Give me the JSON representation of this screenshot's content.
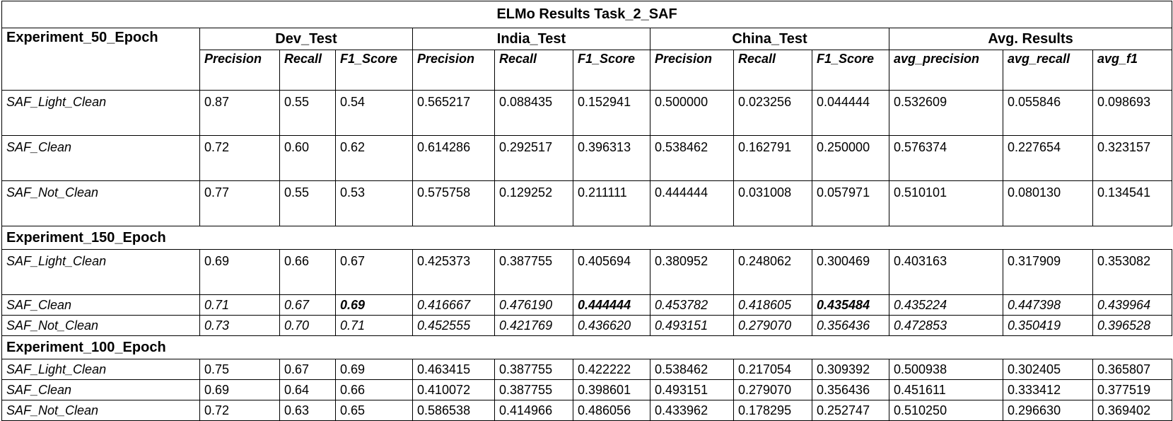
{
  "table": {
    "title": "ELMo Results Task_2_SAF",
    "groups": [
      "Dev_Test",
      "India_Test",
      "China_Test",
      "Avg. Results"
    ],
    "columns": [
      "Precision",
      "Recall",
      "F1_Score",
      "Precision",
      "Recall",
      "F1_Score",
      "Precision",
      "Recall",
      "F1_Score",
      "avg_precision",
      "avg_recall",
      "avg_f1"
    ],
    "sections": [
      {
        "title": "Experiment_50_Epoch",
        "rows": [
          {
            "label": "SAF_Light_Clean",
            "cells": [
              "0.87",
              "0.55",
              "0.54",
              "0.565217",
              "0.088435",
              "0.152941",
              "0.500000",
              "0.023256",
              "0.044444",
              "0.532609",
              "0.055846",
              "0.098693"
            ]
          },
          {
            "label": "SAF_Clean",
            "cells": [
              "0.72",
              "0.60",
              "0.62",
              "0.614286",
              "0.292517",
              "0.396313",
              "0.538462",
              "0.162791",
              "0.250000",
              "0.576374",
              "0.227654",
              "0.323157"
            ]
          },
          {
            "label": "SAF_Not_Clean",
            "cells": [
              "0.77",
              "0.55",
              "0.53",
              "0.575758",
              "0.129252",
              "0.211111",
              "0.444444",
              "0.031008",
              "0.057971",
              "0.510101",
              "0.080130",
              "0.134541"
            ]
          }
        ]
      },
      {
        "title": "Experiment_150_Epoch",
        "rows": [
          {
            "label": "SAF_Light_Clean",
            "cells": [
              "0.69",
              "0.66",
              "0.67",
              "0.425373",
              "0.387755",
              "0.405694",
              "0.380952",
              "0.248062",
              "0.300469",
              "0.403163",
              "0.317909",
              "0.353082"
            ]
          },
          {
            "label": "SAF_Clean",
            "cells": [
              "0.71",
              "0.67",
              "0.69",
              "0.416667",
              "0.476190",
              "0.444444",
              "0.453782",
              "0.418605",
              "0.435484",
              "0.435224",
              "0.447398",
              "0.439964"
            ]
          },
          {
            "label": "SAF_Not_Clean",
            "cells": [
              "0.73",
              "0.70",
              "0.71",
              "0.452555",
              "0.421769",
              "0.436620",
              "0.493151",
              "0.279070",
              "0.356436",
              "0.472853",
              "0.350419",
              "0.396528"
            ]
          }
        ]
      },
      {
        "title": "Experiment_100_Epoch",
        "rows": [
          {
            "label": "SAF_Light_Clean",
            "cells": [
              "0.75",
              "0.67",
              "0.69",
              "0.463415",
              "0.387755",
              "0.422222",
              "0.538462",
              "0.217054",
              "0.309392",
              "0.500938",
              "0.302405",
              "0.365807"
            ]
          },
          {
            "label": "SAF_Clean",
            "cells": [
              "0.69",
              "0.64",
              "0.66",
              "0.410072",
              "0.387755",
              "0.398601",
              "0.493151",
              "0.279070",
              "0.356436",
              "0.451611",
              "0.333412",
              "0.377519"
            ]
          },
          {
            "label": "SAF_Not_Clean",
            "cells": [
              "0.72",
              "0.63",
              "0.65",
              "0.586538",
              "0.414966",
              "0.486056",
              "0.433962",
              "0.178295",
              "0.252747",
              "0.510250",
              "0.296630",
              "0.369402"
            ]
          }
        ]
      }
    ]
  }
}
